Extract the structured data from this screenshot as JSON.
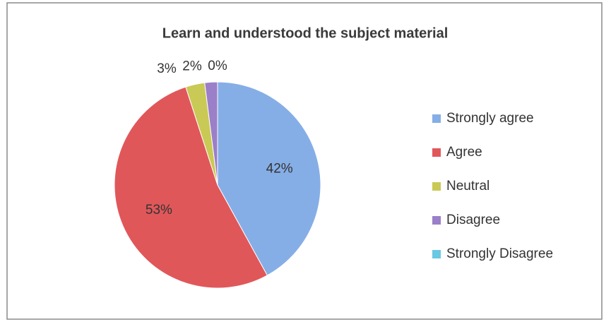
{
  "chart_data": {
    "type": "pie",
    "title": "Learn and understood the subject material",
    "categories": [
      "Strongly agree",
      "Agree",
      "Neutral",
      "Disagree",
      "Strongly Disagree"
    ],
    "values": [
      42,
      53,
      3,
      2,
      0
    ],
    "value_labels": [
      "42%",
      "53%",
      "3%",
      "2%",
      "0%"
    ],
    "colors": [
      "#86aee6",
      "#e0575a",
      "#c9c955",
      "#9b7fc8",
      "#6ac8e2"
    ],
    "legend": "right"
  }
}
